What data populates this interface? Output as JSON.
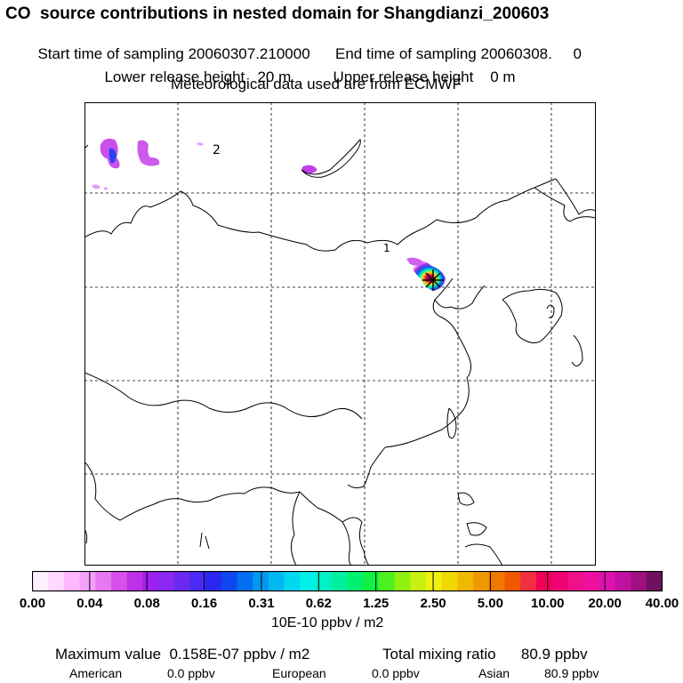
{
  "header": {
    "title": "CO  source contributions in nested domain for Shangdianzi_200603",
    "start_label": "Start time of sampling 20060307.210000",
    "end_label": "End time of sampling 20060308.     0",
    "lower_label": "Lower release height   20 m",
    "upper_label": "Upper release height    0 m",
    "met_label": "Meteorological data used are from ECMWF"
  },
  "map": {
    "region_labels": [
      "2",
      "1"
    ],
    "station_marker": "star-icon",
    "grid_style": "dashed",
    "colors": {
      "border": "#000000",
      "grid": "#000000",
      "background": "#ffffff"
    }
  },
  "colorbar": {
    "colors": [
      "#fff0ff",
      "#ffd8ff",
      "#ffb8ff",
      "#f4a0f8",
      "#e678f0",
      "#d850ec",
      "#c030e8",
      "#a020f0",
      "#8a28f0",
      "#6a28f0",
      "#4a2af5",
      "#2a28f0",
      "#1048f0",
      "#0070f0",
      "#0098f0",
      "#00b8f0",
      "#00d8f0",
      "#00f0e8",
      "#00f0c8",
      "#00f0a0",
      "#00f070",
      "#10f040",
      "#50f020",
      "#90f010",
      "#c8f010",
      "#f0f010",
      "#f0d800",
      "#f0b800",
      "#f09800",
      "#f07800",
      "#f05800",
      "#f03040",
      "#f00058",
      "#f00070",
      "#f0108a",
      "#f010a0",
      "#e010b0",
      "#c010a0",
      "#a01080",
      "#701060"
    ],
    "ticks": [
      "0.00",
      "0.04",
      "0.08",
      "0.16",
      "0.31",
      "0.62",
      "1.25",
      "2.50",
      "5.00",
      "10.00",
      "20.00",
      "40.00"
    ],
    "unit": "10E-10 ppbv / m2"
  },
  "stats": {
    "max_label": "Maximum value  0.158E-07 ppbv / m2",
    "total_label": "Total mixing ratio      80.9 ppbv",
    "american_label": "American",
    "american_value": "0.0 ppbv",
    "european_label": "European",
    "european_value": "0.0 ppbv",
    "asian_label": "Asian",
    "asian_value": "80.9 ppbv"
  }
}
